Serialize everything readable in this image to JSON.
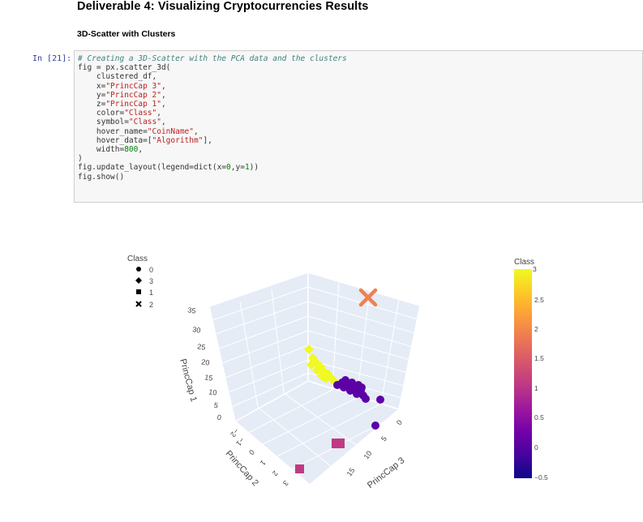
{
  "heading": "Deliverable 4: Visualizing Cryptocurrencies Results",
  "subheading": "3D-Scatter with Clusters",
  "prompt": "In [21]:",
  "code": {
    "comment": "# Creating a 3D-Scatter with the PCA data and the clusters",
    "l2a": "fig = px.scatter_3d(",
    "l3": "    clustered_df,",
    "l4a": "    x=",
    "l4b": "\"PrincCap 3\"",
    "l4c": ",",
    "l5a": "    y=",
    "l5b": "\"PrincCap 2\"",
    "l5c": ",",
    "l6a": "    z=",
    "l6b": "\"PrincCap 1\"",
    "l6c": ",",
    "l7a": "    color=",
    "l7b": "\"Class\"",
    "l7c": ",",
    "l8a": "    symbol=",
    "l8b": "\"Class\"",
    "l8c": ",",
    "l9a": "    hover_name=",
    "l9b": "\"CoinName\"",
    "l9c": ",",
    "l10a": "    hover_data=[",
    "l10b": "\"Algorithm\"",
    "l10c": "],",
    "l11a": "    width=",
    "l11b": "800",
    "l11c": ",",
    "l12": ")",
    "l13a": "fig.update_layout(legend=dict(x=",
    "l13b": "0",
    "l13c": ",y=",
    "l13d": "1",
    "l13e": "))",
    "l14": "fig.show()"
  },
  "legend": {
    "title": "Class",
    "items": [
      {
        "label": "0",
        "icon": "circle-icon"
      },
      {
        "label": "3",
        "icon": "diamond-icon"
      },
      {
        "label": "1",
        "icon": "square-icon"
      },
      {
        "label": "2",
        "icon": "x-icon"
      }
    ]
  },
  "colorbar": {
    "title": "Class",
    "ticks": [
      "3",
      "2.5",
      "2",
      "1.5",
      "1",
      "0.5",
      "0",
      "−0.5"
    ],
    "colors": [
      "#0d0887",
      "#46039f",
      "#7201a8",
      "#9c179e",
      "#bd3786",
      "#d8576b",
      "#ed7953",
      "#fb9f3a",
      "#fdca26",
      "#f0f921"
    ]
  },
  "chart_data": {
    "type": "scatter",
    "title": "",
    "axes": {
      "x": {
        "label": "PrincCap 3",
        "ticks": [
          "0",
          "5",
          "10",
          "15"
        ]
      },
      "y": {
        "label": "PrincCap 2",
        "ticks": [
          "−2",
          "−1",
          "0",
          "1",
          "2",
          "3"
        ]
      },
      "z": {
        "label": "PrincCap 1",
        "ticks": [
          "0",
          "5",
          "10",
          "15",
          "20",
          "25",
          "30",
          "35"
        ]
      }
    },
    "series": [
      {
        "name": "0",
        "symbol": "circle",
        "color": "#5c01a6"
      },
      {
        "name": "3",
        "symbol": "diamond",
        "color": "#f0f921"
      },
      {
        "name": "1",
        "symbol": "square",
        "color": "#c03a83"
      },
      {
        "name": "2",
        "symbol": "x",
        "color": "#f0804f"
      }
    ]
  }
}
